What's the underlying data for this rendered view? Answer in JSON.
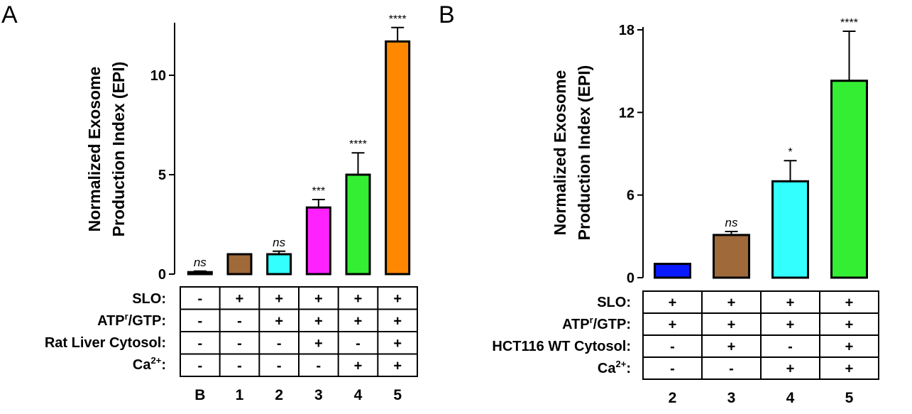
{
  "chart_data": [
    {
      "type": "bar",
      "panel": "A",
      "ylabel_line1": "Normalized Exosome",
      "ylabel_line2": "Production Index (EPI)",
      "ylim": [
        0,
        12.5
      ],
      "yticks": [
        0,
        5,
        10
      ],
      "categories": [
        "B",
        "1",
        "2",
        "3",
        "4",
        "5"
      ],
      "values": [
        0.1,
        1.0,
        1.0,
        3.35,
        5.0,
        11.7
      ],
      "errors": [
        0.05,
        0.0,
        0.15,
        0.4,
        1.1,
        0.7
      ],
      "colors": [
        "#444444",
        "#a0693a",
        "#33ffff",
        "#ff22ff",
        "#33ee33",
        "#ff8800"
      ],
      "significance": [
        "ns",
        "",
        "ns",
        "***",
        "****",
        "****"
      ],
      "conditions": {
        "rows": [
          "SLO:",
          "ATPr/GTP:",
          "Rat Liver Cytosol:",
          "Ca2+:"
        ],
        "values": [
          [
            "-",
            "+",
            "+",
            "+",
            "+",
            "+"
          ],
          [
            "-",
            "-",
            "+",
            "+",
            "+",
            "+"
          ],
          [
            "-",
            "-",
            "-",
            "+",
            "-",
            "+"
          ],
          [
            "-",
            "-",
            "-",
            "-",
            "+",
            "+"
          ]
        ]
      }
    },
    {
      "type": "bar",
      "panel": "B",
      "ylabel_line1": "Normalized Exosome",
      "ylabel_line2": "Production Index (EPI)",
      "ylim": [
        0,
        18
      ],
      "yticks": [
        0,
        6,
        12,
        18
      ],
      "categories": [
        "2",
        "3",
        "4",
        "5"
      ],
      "values": [
        1.0,
        3.1,
        7.0,
        14.3
      ],
      "errors": [
        0.0,
        0.25,
        1.5,
        3.6
      ],
      "colors": [
        "#0a1aff",
        "#a0693a",
        "#33ffff",
        "#33ee33"
      ],
      "significance": [
        "",
        "ns",
        "*",
        "****"
      ],
      "conditions": {
        "rows": [
          "SLO:",
          "ATPr/GTP:",
          "HCT116 WT Cytosol:",
          "Ca2+:"
        ],
        "values": [
          [
            "+",
            "+",
            "+",
            "+"
          ],
          [
            "+",
            "+",
            "+",
            "+"
          ],
          [
            "-",
            "+",
            "-",
            "+"
          ],
          [
            "-",
            "-",
            "+",
            "+"
          ]
        ]
      }
    }
  ]
}
